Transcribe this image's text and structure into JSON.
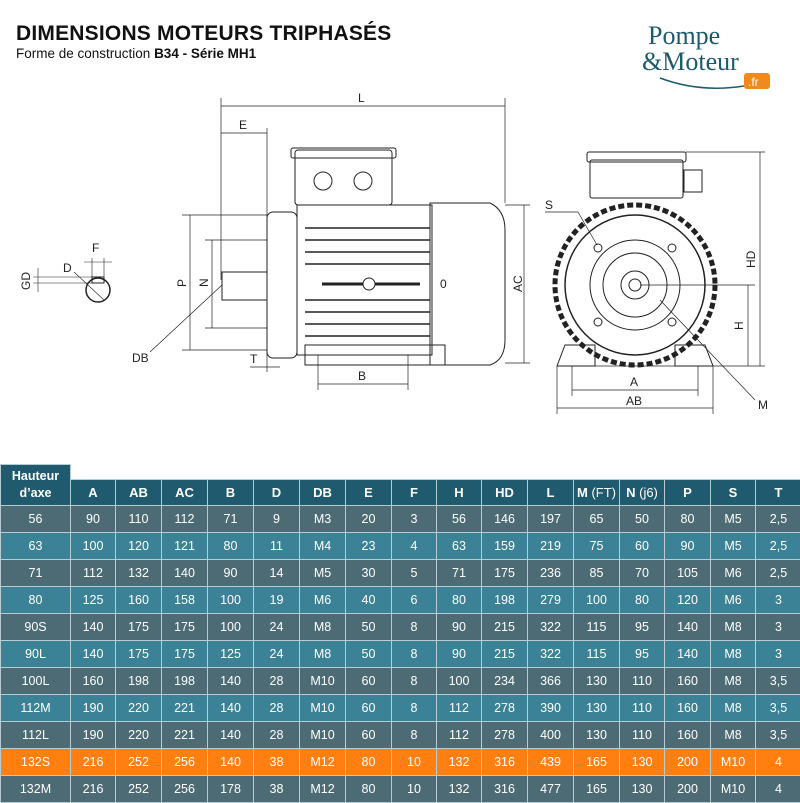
{
  "header": {
    "title": "DIMENSIONS MOTEURS TRIPHASÉS",
    "subtitle_prefix": "Forme de construction ",
    "subtitle_bold": "B34 - Série MH1"
  },
  "logo": {
    "line1": "Pompe",
    "line2": "&Moteur",
    "tld": ".fr",
    "colors": {
      "text": "#1e5a6e",
      "badge": "#f08a1c"
    }
  },
  "diagram": {
    "labels": {
      "L": "L",
      "E": "E",
      "P": "P",
      "N": "N",
      "DB": "DB",
      "T": "T",
      "B": "B",
      "AC": "AC",
      "O": "0",
      "S": "S",
      "HD": "HD",
      "H": "H",
      "A": "A",
      "AB": "AB",
      "M": "M",
      "F": "F",
      "D": "D",
      "GD": "GD"
    }
  },
  "table": {
    "corner": [
      "Hauteur",
      "d’axe"
    ],
    "columns": [
      {
        "main": "A"
      },
      {
        "main": "AB"
      },
      {
        "main": "AC"
      },
      {
        "main": "B"
      },
      {
        "main": "D"
      },
      {
        "main": "DB"
      },
      {
        "main": "E"
      },
      {
        "main": "F"
      },
      {
        "main": "H"
      },
      {
        "main": "HD"
      },
      {
        "main": "L"
      },
      {
        "main": "M",
        "suffix": " (FT)"
      },
      {
        "main": "N",
        "suffix": " (j6)"
      },
      {
        "main": "P"
      },
      {
        "main": "S"
      },
      {
        "main": "T"
      }
    ],
    "highlight_row": "132S",
    "colors": {
      "header": "#1f5a6e",
      "dark": "#4c6b74",
      "light": "#3b8296",
      "highlight": "#ff7f11"
    },
    "rows": [
      [
        "56",
        "90",
        "110",
        "112",
        "71",
        "9",
        "M3",
        "20",
        "3",
        "56",
        "146",
        "197",
        "65",
        "50",
        "80",
        "M5",
        "2,5"
      ],
      [
        "63",
        "100",
        "120",
        "121",
        "80",
        "11",
        "M4",
        "23",
        "4",
        "63",
        "159",
        "219",
        "75",
        "60",
        "90",
        "M5",
        "2,5"
      ],
      [
        "71",
        "112",
        "132",
        "140",
        "90",
        "14",
        "M5",
        "30",
        "5",
        "71",
        "175",
        "236",
        "85",
        "70",
        "105",
        "M6",
        "2,5"
      ],
      [
        "80",
        "125",
        "160",
        "158",
        "100",
        "19",
        "M6",
        "40",
        "6",
        "80",
        "198",
        "279",
        "100",
        "80",
        "120",
        "M6",
        "3"
      ],
      [
        "90S",
        "140",
        "175",
        "175",
        "100",
        "24",
        "M8",
        "50",
        "8",
        "90",
        "215",
        "322",
        "115",
        "95",
        "140",
        "M8",
        "3"
      ],
      [
        "90L",
        "140",
        "175",
        "175",
        "125",
        "24",
        "M8",
        "50",
        "8",
        "90",
        "215",
        "322",
        "115",
        "95",
        "140",
        "M8",
        "3"
      ],
      [
        "100L",
        "160",
        "198",
        "198",
        "140",
        "28",
        "M10",
        "60",
        "8",
        "100",
        "234",
        "366",
        "130",
        "110",
        "160",
        "M8",
        "3,5"
      ],
      [
        "112M",
        "190",
        "220",
        "221",
        "140",
        "28",
        "M10",
        "60",
        "8",
        "112",
        "278",
        "390",
        "130",
        "110",
        "160",
        "M8",
        "3,5"
      ],
      [
        "112L",
        "190",
        "220",
        "221",
        "140",
        "28",
        "M10",
        "60",
        "8",
        "112",
        "278",
        "400",
        "130",
        "110",
        "160",
        "M8",
        "3,5"
      ],
      [
        "132S",
        "216",
        "252",
        "256",
        "140",
        "38",
        "M12",
        "80",
        "10",
        "132",
        "316",
        "439",
        "165",
        "130",
        "200",
        "M10",
        "4"
      ],
      [
        "132M",
        "216",
        "252",
        "256",
        "178",
        "38",
        "M12",
        "80",
        "10",
        "132",
        "316",
        "477",
        "165",
        "130",
        "200",
        "M10",
        "4"
      ]
    ]
  }
}
